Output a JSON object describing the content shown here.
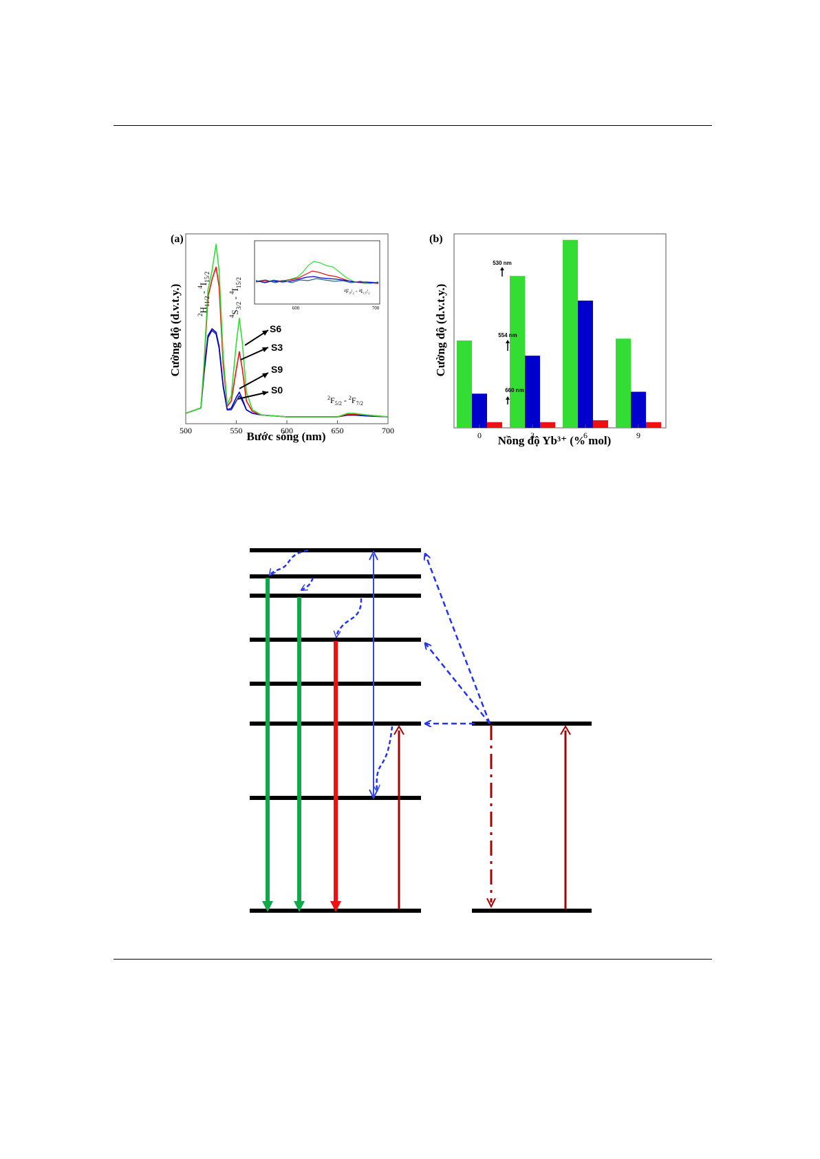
{
  "colors": {
    "green": "#33dd33",
    "blue": "#0000cc",
    "red": "#ee1111",
    "darkred": "#aa0000",
    "darkgreen": "#11a84a",
    "dashblue": "#2233ee"
  },
  "panel_a": {
    "panel_label": "(a)",
    "xlabel": "Bước sóng (nm)",
    "ylabel": "Cường độ (d.v.t.y.)",
    "xticks": [
      "500",
      "550",
      "600",
      "650",
      "700"
    ],
    "ann_h": {
      "base": "H",
      "sup": "2",
      "sub": "11/2",
      "dash": " - ",
      "sup2": "4",
      "term": "I",
      "sub2": "15/2"
    },
    "ann_s": {
      "base": "S",
      "sup": "4",
      "sub": "3/2",
      "dash": " - ",
      "sup2": "4",
      "term": "I",
      "sub2": "15/2"
    },
    "ann_f": {
      "base": "F",
      "sup": "2",
      "sub": "5/2",
      "dash": " - ",
      "sup2": "2",
      "term": "F",
      "sub2": "7/2"
    },
    "sample_labels": [
      "S6",
      "S3",
      "S9",
      "S0"
    ],
    "inset": {
      "xticks": [
        "600",
        "700"
      ],
      "label": "⁴F₉/₂ - ⁴I₁₅/₂"
    }
  },
  "chart_data": [
    {
      "type": "line",
      "panel": "(a)",
      "xlabel": "Bước sóng (nm)",
      "ylabel": "Cường độ (d.v.t.y.)",
      "xlim": [
        500,
        700
      ],
      "x": [
        500,
        515,
        518,
        522,
        526,
        530,
        533,
        537,
        541,
        545,
        550,
        553,
        556,
        560,
        566,
        575,
        600,
        650,
        660,
        667,
        680,
        700
      ],
      "series": [
        {
          "name": "S6",
          "color": "green",
          "values": [
            0.02,
            0.05,
            0.3,
            0.72,
            0.83,
            0.98,
            0.83,
            0.35,
            0.07,
            0.12,
            0.42,
            0.56,
            0.42,
            0.14,
            0.04,
            0.01,
            0.0,
            0.0,
            0.02,
            0.02,
            0.01,
            0.0
          ]
        },
        {
          "name": "S3",
          "color": "red",
          "values": [
            0.02,
            0.05,
            0.28,
            0.68,
            0.78,
            0.85,
            0.74,
            0.3,
            0.06,
            0.09,
            0.27,
            0.37,
            0.27,
            0.09,
            0.03,
            0.01,
            0.0,
            0.0,
            0.015,
            0.015,
            0.01,
            0.0
          ]
        },
        {
          "name": "S9",
          "color": "blue",
          "values": [
            0.02,
            0.05,
            0.25,
            0.46,
            0.5,
            0.48,
            0.4,
            0.18,
            0.04,
            0.05,
            0.11,
            0.14,
            0.1,
            0.04,
            0.02,
            0.01,
            0.0,
            0.0,
            0.01,
            0.01,
            0.005,
            0.0
          ]
        },
        {
          "name": "S0",
          "color": "darkblue",
          "values": [
            0.02,
            0.05,
            0.24,
            0.45,
            0.49,
            0.47,
            0.39,
            0.17,
            0.04,
            0.04,
            0.09,
            0.12,
            0.09,
            0.04,
            0.02,
            0.01,
            0.0,
            0.0,
            0.01,
            0.01,
            0.005,
            0.0
          ]
        }
      ]
    },
    {
      "type": "bar",
      "panel": "(b)",
      "xlabel": "Nồng độ Yb³⁺ (% mol)",
      "ylabel": "Cường độ (d.v.t.y.)",
      "categories": [
        "0",
        "3",
        "6",
        "9"
      ],
      "ylim": [
        0,
        100
      ],
      "series": [
        {
          "name": "530 nm",
          "color": "green",
          "values": [
            46,
            80,
            99,
            47
          ]
        },
        {
          "name": "554 nm",
          "color": "blue",
          "values": [
            18,
            38,
            67,
            19
          ]
        },
        {
          "name": "660 nm",
          "color": "red",
          "values": [
            3,
            3,
            4,
            3
          ]
        }
      ]
    }
  ],
  "panel_b": {
    "panel_label": "(b)",
    "xlabel": "Nồng độ Yb³⁺ (% mol)",
    "ylabel": "Cường độ (d.v.t.y.)",
    "ann_530": "530 nm",
    "ann_554": "554 nm",
    "ann_660": "660 nm"
  }
}
